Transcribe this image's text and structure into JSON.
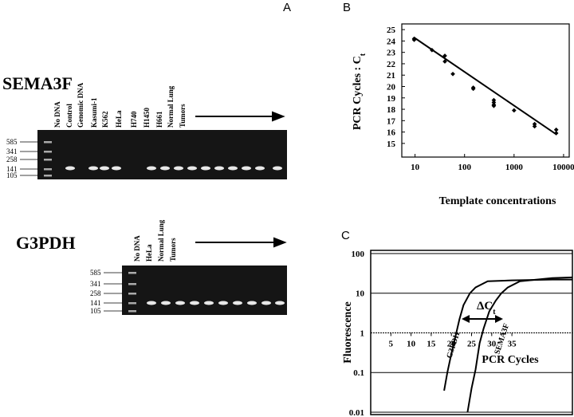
{
  "panel_a": {
    "label": "A",
    "sema3f": {
      "title": "SEMA3F",
      "ladder": [
        "585",
        "341",
        "258",
        "141",
        "105"
      ],
      "lanes": [
        "No DNA",
        "Control",
        "Genomic DNA",
        "Kasumi-1",
        "K562",
        "HeLa",
        "H740",
        "H1450",
        "H661",
        "Normal Lung",
        "Tumors"
      ]
    },
    "g3pdh": {
      "title": "G3PDH",
      "ladder": [
        "585",
        "341",
        "258",
        "141",
        "105"
      ],
      "lanes": [
        "No DNA",
        "HeLa",
        "Normal Lung",
        "Tumors"
      ]
    }
  },
  "chart_data": [
    {
      "label": "B",
      "type": "scatter",
      "xlabel": "Template concentrations",
      "ylabel": "PCR Cycles : C",
      "ylabel_subscript": "t",
      "x": [
        9.6,
        9.6,
        22,
        40,
        40,
        58,
        150,
        150,
        390,
        390,
        390,
        390,
        1000,
        2600,
        2600,
        7100,
        7100
      ],
      "values": [
        24.2,
        24.1,
        23.2,
        22.7,
        22.2,
        21.1,
        19.9,
        19.8,
        18.8,
        18.6,
        18.3,
        18.4,
        17.9,
        16.7,
        16.5,
        16.2,
        15.9
      ],
      "color": "#000000",
      "xscale": "log",
      "xlim": [
        5.4,
        13000
      ],
      "xticks": [
        10,
        100,
        1000,
        10000
      ],
      "ylim": [
        13.8,
        25.5
      ],
      "yticks": [
        15,
        16,
        17,
        18,
        19,
        20,
        21,
        22,
        23,
        24,
        25
      ],
      "fit": {
        "x": [
          9.6,
          7100
        ],
        "y": [
          24.3,
          15.8
        ]
      }
    },
    {
      "label": "C",
      "type": "line",
      "xlabel": "PCR Cycles",
      "ylabel": "Fluorescence",
      "yscale": "log",
      "xlim": [
        0,
        50
      ],
      "xticks": [
        5,
        10,
        15,
        20,
        25,
        30,
        35
      ],
      "ylim": [
        0.0087,
        120
      ],
      "yticks": [
        100,
        10,
        1,
        0.1,
        0.01
      ],
      "annotation": "ΔC",
      "annotation_subscript": "t",
      "series": [
        {
          "name": "G3PDH",
          "color": "#000000",
          "x": [
            18.2,
            19,
            20,
            21,
            22,
            23,
            24.6,
            26,
            29,
            35,
            45,
            50
          ],
          "values": [
            0.035,
            0.1,
            0.3,
            0.8,
            2.2,
            5,
            10,
            14,
            20,
            21,
            22,
            22
          ]
        },
        {
          "name": "SEMA3F",
          "color": "#000000",
          "x": [
            24,
            25,
            26,
            27,
            28,
            29.4,
            31,
            32.4,
            34,
            37,
            45,
            50
          ],
          "values": [
            0.01,
            0.04,
            0.12,
            0.55,
            1.3,
            3.5,
            6.5,
            10,
            14,
            20,
            24,
            25
          ]
        }
      ]
    }
  ]
}
